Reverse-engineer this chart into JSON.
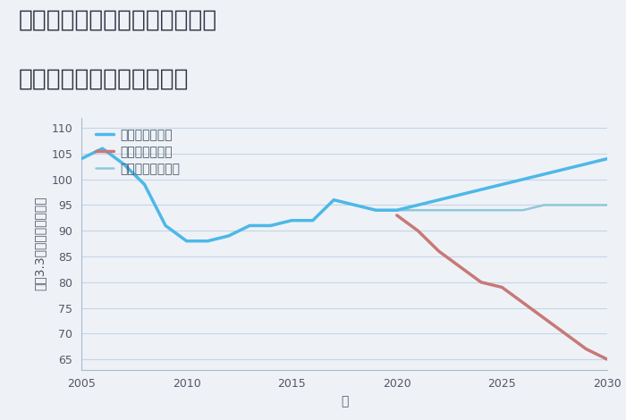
{
  "title_line1": "三重県桑名市長島町長島下町の",
  "title_line2": "中古マンションの価格推移",
  "xlabel": "年",
  "ylabel": "坪（3.3㎡）単価（万円）",
  "background_color": "#eef2f7",
  "plot_bg_color": "#eef2f7",
  "grid_color": "#c5d5e5",
  "ylim": [
    63,
    112
  ],
  "yticks": [
    65,
    70,
    75,
    80,
    85,
    90,
    95,
    100,
    105,
    110
  ],
  "xlim": [
    2005,
    2030
  ],
  "xticks": [
    2005,
    2010,
    2015,
    2020,
    2025,
    2030
  ],
  "good_scenario": {
    "x": [
      2005,
      2006,
      2007,
      2008,
      2009,
      2010,
      2011,
      2012,
      2013,
      2014,
      2015,
      2016,
      2017,
      2018,
      2019,
      2020,
      2021,
      2022,
      2023,
      2024,
      2025,
      2026,
      2027,
      2028,
      2029,
      2030
    ],
    "y": [
      104,
      106,
      103,
      99,
      91,
      88,
      88,
      89,
      91,
      91,
      92,
      92,
      96,
      95,
      94,
      94,
      95,
      96,
      97,
      98,
      99,
      100,
      101,
      102,
      103,
      104
    ],
    "color": "#4db8e8",
    "linewidth": 2.5,
    "label": "グッドシナリオ"
  },
  "bad_scenario": {
    "x": [
      2020,
      2021,
      2022,
      2023,
      2024,
      2025,
      2026,
      2027,
      2028,
      2029,
      2030
    ],
    "y": [
      93,
      90,
      86,
      83,
      80,
      79,
      76,
      73,
      70,
      67,
      65
    ],
    "color": "#c87878",
    "linewidth": 2.5,
    "label": "バッドシナリオ"
  },
  "normal_scenario": {
    "x": [
      2005,
      2006,
      2007,
      2008,
      2009,
      2010,
      2011,
      2012,
      2013,
      2014,
      2015,
      2016,
      2017,
      2018,
      2019,
      2020,
      2021,
      2022,
      2023,
      2024,
      2025,
      2026,
      2027,
      2028,
      2029,
      2030
    ],
    "y": [
      104,
      106,
      103,
      99,
      91,
      88,
      88,
      89,
      91,
      91,
      92,
      92,
      96,
      95,
      94,
      94,
      94,
      94,
      94,
      94,
      94,
      94,
      95,
      95,
      95,
      95
    ],
    "color": "#90c8d8",
    "linewidth": 1.8,
    "label": "ノーマルシナリオ"
  },
  "title_fontsize": 19,
  "axis_label_fontsize": 10,
  "tick_fontsize": 9,
  "legend_fontsize": 10
}
